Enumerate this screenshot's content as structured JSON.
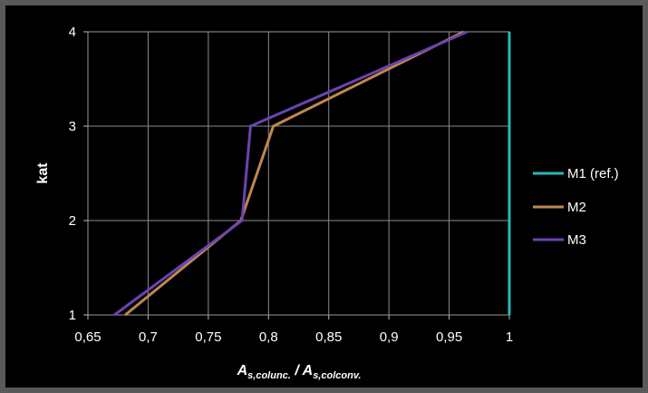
{
  "chart_data": {
    "type": "line",
    "xlabel": {
      "a1": "A",
      "s1": "s,col",
      "u": "unc.",
      "sep": " / ",
      "a2": "A",
      "s2": "s,col",
      "c": "conv."
    },
    "ylabel": "kat",
    "xlim": [
      0.65,
      1.0
    ],
    "ylim": [
      1,
      4
    ],
    "x_ticks": [
      "0,65",
      "0,7",
      "0,75",
      "0,8",
      "0,85",
      "0,9",
      "0,95",
      "1"
    ],
    "x_tick_values": [
      0.65,
      0.7,
      0.75,
      0.8,
      0.85,
      0.9,
      0.95,
      1.0
    ],
    "y_ticks": [
      "1",
      "2",
      "3",
      "4"
    ],
    "y_tick_values": [
      1,
      2,
      3,
      4
    ],
    "grid": true,
    "legend_position": "right",
    "series": [
      {
        "name": "M1 (ref.)",
        "color": "#2ab7b7",
        "x": [
          1.0,
          1.0,
          1.0,
          1.0
        ],
        "y": [
          1,
          2,
          3,
          4
        ]
      },
      {
        "name": "M2",
        "color": "#c0874f",
        "x": [
          0.681,
          0.777,
          0.804,
          0.962
        ],
        "y": [
          1,
          2,
          3,
          4
        ]
      },
      {
        "name": "M3",
        "color": "#6a43b3",
        "x": [
          0.672,
          0.778,
          0.785,
          0.965
        ],
        "y": [
          1,
          2,
          3,
          4
        ]
      }
    ]
  }
}
